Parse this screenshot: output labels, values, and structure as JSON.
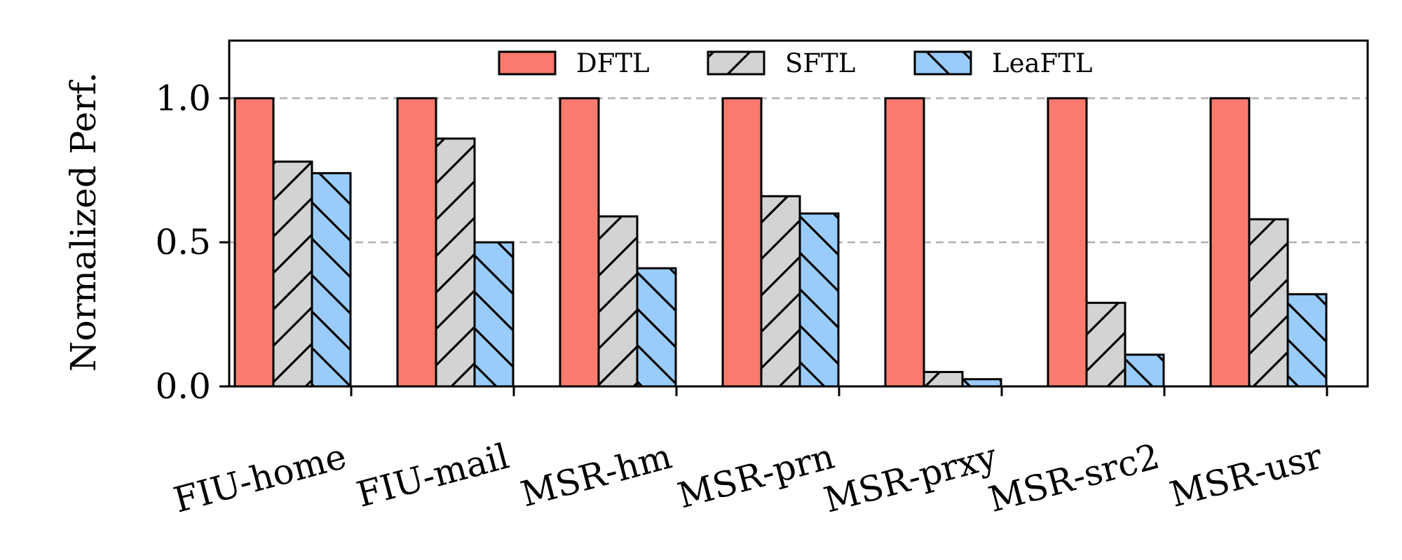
{
  "chart_data": {
    "type": "bar",
    "title": "",
    "xlabel": "",
    "ylabel": "Normalized Perf.",
    "ylim": [
      0,
      1.2
    ],
    "yticks": [
      0,
      0.5,
      1
    ],
    "ytick_labels": [
      "0.0",
      "0.5",
      "1.0"
    ],
    "grid": "horizontal dashed at 0.5 and 1.0",
    "legend_position": "top-center",
    "categories": [
      "FIU-home",
      "FIU-mail",
      "MSR-hm",
      "MSR-prn",
      "MSR-prxy",
      "MSR-src2",
      "MSR-usr"
    ],
    "series": [
      {
        "name": "DFTL",
        "color": "#fa7b6e",
        "hatch": "none",
        "values": [
          1.0,
          1.0,
          1.0,
          1.0,
          1.0,
          1.0,
          1.0
        ]
      },
      {
        "name": "SFTL",
        "color": "#d3d3d3",
        "hatch": "forward-slash",
        "values": [
          0.78,
          0.86,
          0.59,
          0.66,
          0.05,
          0.29,
          0.58
        ]
      },
      {
        "name": "LeaFTL",
        "color": "#99ccfa",
        "hatch": "back-slash",
        "values": [
          0.74,
          0.5,
          0.41,
          0.6,
          0.025,
          0.11,
          0.32
        ]
      }
    ]
  }
}
